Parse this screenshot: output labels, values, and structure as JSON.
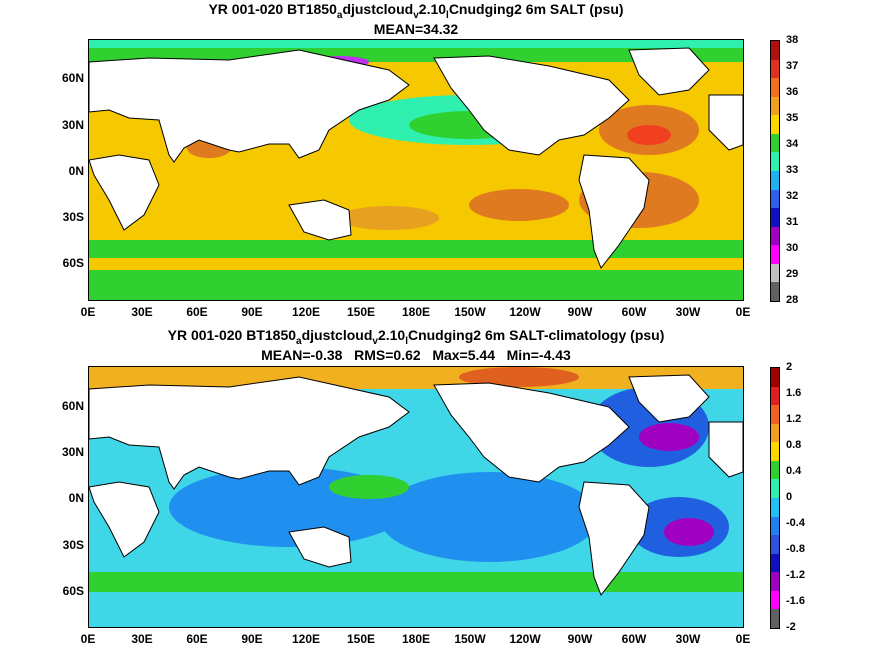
{
  "panels": [
    {
      "title_parts": [
        "YR 001-020 BT1850",
        "a",
        "djustcloud",
        "v",
        "2.10",
        "l",
        "Cnudging2 6m SALT (psu)"
      ],
      "stats": "MEAN=34.32",
      "lat_labels": [
        "60N",
        "30N",
        "0N",
        "30S",
        "60S"
      ],
      "lon_labels": [
        "0E",
        "30E",
        "60E",
        "90E",
        "120E",
        "150E",
        "180E",
        "150W",
        "120W",
        "90W",
        "60W",
        "30W",
        "0E"
      ],
      "colorbar_labels": [
        "38",
        "37",
        "36",
        "35",
        "34",
        "33",
        "32",
        "31",
        "30",
        "29",
        "28"
      ],
      "colorbar_colors": [
        "#b01010",
        "#e03020",
        "#f07020",
        "#f0a020",
        "#ffd800",
        "#30d030",
        "#30f0b0",
        "#20b0f0",
        "#3060f0",
        "#1010c0",
        "#a000c0",
        "#ff00ff",
        "#c0c0c0",
        "#606060"
      ],
      "ocean_color": "#f5c800"
    },
    {
      "title_parts": [
        "YR 001-020 BT1850",
        "a",
        "djustcloud",
        "v",
        "2.10",
        "l",
        "Cnudging2 6m SALT-climatology (psu)"
      ],
      "stats": "MEAN=-0.38   RMS=0.62   Max=5.44   Min=-4.43",
      "lat_labels": [
        "60N",
        "30N",
        "0N",
        "30S",
        "60S"
      ],
      "lon_labels": [
        "0E",
        "30E",
        "60E",
        "90E",
        "120E",
        "150E",
        "180E",
        "150W",
        "120W",
        "90W",
        "60W",
        "30W",
        "0E"
      ],
      "colorbar_labels": [
        "2",
        "1.6",
        "1.2",
        "0.8",
        "0.4",
        "0",
        "-0.4",
        "-0.8",
        "-1.2",
        "-1.6",
        "-2"
      ],
      "colorbar_colors": [
        "#a00000",
        "#e02020",
        "#f06020",
        "#f0a020",
        "#ffd800",
        "#30d030",
        "#30f0b0",
        "#20c0f0",
        "#2080f0",
        "#3050e0",
        "#1010c0",
        "#a000c0",
        "#ff00ff",
        "#606060"
      ],
      "ocean_color": "#3fd6e8"
    }
  ]
}
